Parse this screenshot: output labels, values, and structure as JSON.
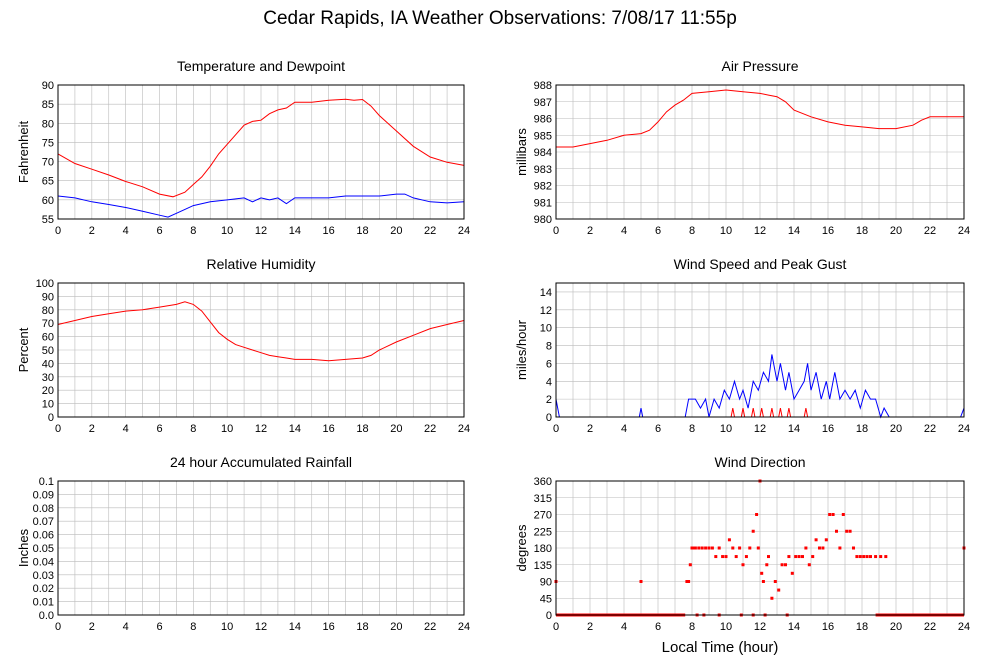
{
  "page": {
    "title": "Cedar Rapids, IA Weather Observations: 7/08/17 11:55p"
  },
  "x_axis_label": "Local Time (hour)",
  "colors": {
    "primary": "#ff0000",
    "secondary": "#0000ff",
    "grid": "#bbbbbb",
    "axis": "#000000"
  },
  "chart_data": [
    {
      "id": "temp",
      "type": "line",
      "title": "Temperature and Dewpoint",
      "ylabel": "Fahrenheit",
      "xlim": [
        0,
        24
      ],
      "ylim": [
        55,
        90
      ],
      "xticks": [
        0,
        2,
        4,
        6,
        8,
        10,
        12,
        14,
        16,
        18,
        20,
        22,
        24
      ],
      "yticks": [
        "55",
        "60",
        "65",
        "70",
        "75",
        "80",
        "85",
        "90"
      ],
      "grid": true,
      "series": [
        {
          "color": "#ff0000",
          "x": [
            0,
            1,
            2,
            3,
            4,
            5,
            6,
            6.8,
            7.5,
            8,
            8.5,
            9,
            9.5,
            10,
            10.5,
            11,
            11.5,
            12,
            12.5,
            13,
            13.5,
            14,
            15,
            16,
            17,
            17.5,
            18,
            18.5,
            19,
            20,
            21,
            22,
            23,
            24
          ],
          "y": [
            72,
            69.5,
            68,
            66.5,
            64.8,
            63.4,
            61.5,
            60.8,
            62,
            64,
            66,
            68.8,
            72,
            74.5,
            77,
            79.5,
            80.5,
            80.8,
            82.5,
            83.5,
            84,
            85.5,
            85.5,
            86,
            86.3,
            86,
            86.2,
            84.5,
            82,
            78,
            74,
            71.2,
            69.8,
            69
          ]
        },
        {
          "color": "#0000ff",
          "x": [
            0,
            1,
            2,
            3,
            4,
            5,
            6,
            6.5,
            7,
            7.5,
            8,
            9,
            10,
            11,
            11.5,
            12,
            12.5,
            13,
            13.5,
            14,
            15,
            16,
            17,
            18,
            19,
            20,
            20.5,
            21,
            22,
            23,
            24
          ],
          "y": [
            61,
            60.5,
            59.5,
            58.8,
            58,
            57,
            56,
            55.5,
            56.5,
            57.5,
            58.5,
            59.5,
            60,
            60.5,
            59.5,
            60.5,
            60,
            60.5,
            59,
            60.5,
            60.5,
            60.5,
            61,
            61,
            61,
            61.5,
            61.5,
            60.5,
            59.5,
            59.2,
            59.5
          ]
        }
      ]
    },
    {
      "id": "pressure",
      "type": "line",
      "title": "Air Pressure",
      "ylabel": "millibars",
      "xlim": [
        0,
        24
      ],
      "ylim": [
        980,
        988
      ],
      "xticks": [
        0,
        2,
        4,
        6,
        8,
        10,
        12,
        14,
        16,
        18,
        20,
        22,
        24
      ],
      "yticks": [
        "980",
        "981",
        "982",
        "983",
        "984",
        "985",
        "986",
        "987",
        "988"
      ],
      "grid": true,
      "series": [
        {
          "color": "#ff0000",
          "x": [
            0,
            1,
            2,
            3,
            4,
            5,
            5.5,
            6,
            6.5,
            7,
            7.5,
            8,
            9,
            10,
            11,
            12,
            12.5,
            13,
            13.5,
            14,
            15,
            16,
            17,
            18,
            19,
            20,
            21,
            21.5,
            22,
            23,
            24
          ],
          "y": [
            984.3,
            984.3,
            984.5,
            984.7,
            985,
            985.1,
            985.3,
            985.8,
            986.4,
            986.8,
            987.1,
            987.5,
            987.6,
            987.7,
            987.6,
            987.5,
            987.4,
            987.3,
            987.0,
            986.5,
            986.1,
            985.8,
            985.6,
            985.5,
            985.4,
            985.4,
            985.6,
            985.9,
            986.1,
            986.1,
            986.1
          ]
        }
      ]
    },
    {
      "id": "rh",
      "type": "line",
      "title": "Relative Humidity",
      "ylabel": "Percent",
      "xlim": [
        0,
        24
      ],
      "ylim": [
        0,
        100
      ],
      "xticks": [
        0,
        2,
        4,
        6,
        8,
        10,
        12,
        14,
        16,
        18,
        20,
        22,
        24
      ],
      "yticks": [
        "0",
        "10",
        "20",
        "30",
        "40",
        "50",
        "60",
        "70",
        "80",
        "90",
        "100"
      ],
      "grid": true,
      "series": [
        {
          "color": "#ff0000",
          "x": [
            0,
            1,
            2,
            3,
            4,
            5,
            6,
            7,
            7.5,
            8,
            8.5,
            9,
            9.5,
            10,
            10.5,
            11,
            11.5,
            12,
            12.5,
            13,
            13.5,
            14,
            15,
            16,
            17,
            18,
            18.5,
            19,
            20,
            21,
            22,
            23,
            24
          ],
          "y": [
            69,
            72,
            75,
            77,
            79,
            80,
            82,
            84,
            86,
            84,
            79,
            71,
            63,
            58,
            54,
            52,
            50,
            48,
            46,
            45,
            44,
            43,
            43,
            42,
            43,
            44,
            46,
            50,
            56,
            61,
            66,
            69,
            72
          ]
        }
      ]
    },
    {
      "id": "wind",
      "type": "line",
      "title": "Wind Speed and Peak Gust",
      "ylabel": "miles/hour",
      "xlim": [
        0,
        24
      ],
      "ylim": [
        0,
        15
      ],
      "xticks": [
        0,
        2,
        4,
        6,
        8,
        10,
        12,
        14,
        16,
        18,
        20,
        22,
        24
      ],
      "yticks": [
        "0",
        "2",
        "4",
        "6",
        "8",
        "10",
        "12",
        "14"
      ],
      "grid": true,
      "series": [
        {
          "color": "#0000ff",
          "x": [
            0,
            0.1,
            0.2,
            4.9,
            5,
            5.1,
            7.6,
            7.8,
            8.2,
            8.5,
            8.8,
            9,
            9.3,
            9.6,
            9.9,
            10.2,
            10.5,
            10.8,
            11,
            11.3,
            11.6,
            11.9,
            12.2,
            12.5,
            12.7,
            13,
            13.2,
            13.5,
            13.7,
            14,
            14.3,
            14.6,
            14.8,
            15,
            15.3,
            15.6,
            15.9,
            16.1,
            16.4,
            16.7,
            17,
            17.3,
            17.6,
            17.9,
            18.2,
            18.5,
            18.8,
            19.1,
            19.3,
            19.6,
            23.8,
            24
          ],
          "y": [
            2,
            1,
            0,
            0,
            1,
            0,
            0,
            2,
            2,
            1,
            2,
            0,
            2,
            1,
            3,
            2,
            4,
            2,
            3,
            1,
            4,
            3,
            5,
            4,
            7,
            4,
            6,
            3,
            5,
            2,
            3,
            4,
            6,
            3,
            5,
            2,
            4,
            2,
            5,
            2,
            3,
            2,
            3,
            1,
            3,
            2,
            2,
            0,
            1,
            0,
            0,
            1
          ]
        },
        {
          "color": "#ff0000",
          "x": [
            0,
            10.3,
            10.4,
            10.5,
            10.9,
            11,
            11.1,
            11.5,
            11.6,
            11.7,
            12,
            12.1,
            12.2,
            12.6,
            12.7,
            12.8,
            13.1,
            13.2,
            13.3,
            13.6,
            13.7,
            13.8,
            14.6,
            14.7,
            14.8,
            24
          ],
          "y": [
            0,
            0,
            1,
            0,
            0,
            1,
            0,
            0,
            1,
            0,
            0,
            1,
            0,
            0,
            1,
            0,
            0,
            1,
            0,
            0,
            1,
            0,
            0,
            1,
            0,
            0
          ]
        }
      ]
    },
    {
      "id": "rain",
      "type": "line",
      "title": "24 hour Accumulated Rainfall",
      "ylabel": "Inches",
      "xlim": [
        0,
        24
      ],
      "ylim": [
        0,
        0.1
      ],
      "xticks": [
        0,
        2,
        4,
        6,
        8,
        10,
        12,
        14,
        16,
        18,
        20,
        22,
        24
      ],
      "yticks": [
        "0.0",
        "0.01",
        "0.02",
        "0.03",
        "0.04",
        "0.05",
        "0.06",
        "0.07",
        "0.08",
        "0.09",
        "0.1"
      ],
      "grid": true,
      "series": [
        {
          "color": "#ff00ff",
          "x": [
            0,
            24
          ],
          "y": [
            0,
            0
          ]
        }
      ]
    },
    {
      "id": "winddir",
      "type": "scatter",
      "title": "Wind Direction",
      "ylabel": "degrees",
      "xlim": [
        0,
        24
      ],
      "ylim": [
        0,
        360
      ],
      "xticks": [
        0,
        2,
        4,
        6,
        8,
        10,
        12,
        14,
        16,
        18,
        20,
        22,
        24
      ],
      "yticks": [
        "0",
        "45",
        "90",
        "135",
        "180",
        "225",
        "270",
        "315",
        "360"
      ],
      "grid": true,
      "zero_band": [
        [
          0,
          7.6
        ],
        [
          18.8,
          24
        ]
      ],
      "series": [
        {
          "color": "#ff0000",
          "x": [
            0,
            5,
            7.7,
            7.8,
            7.9,
            8.0,
            8.1,
            8.2,
            8.4,
            8.6,
            8.8,
            9.0,
            9.2,
            9.4,
            9.6,
            9.8,
            10.0,
            10.2,
            10.4,
            10.6,
            10.8,
            11.0,
            11.2,
            11.4,
            11.6,
            11.8,
            11.9,
            12.0,
            12.1,
            12.2,
            12.4,
            12.5,
            12.7,
            12.9,
            13.1,
            13.3,
            13.5,
            13.7,
            13.9,
            14.1,
            14.3,
            14.5,
            14.7,
            14.9,
            15.1,
            15.3,
            15.5,
            15.7,
            15.9,
            16.1,
            16.3,
            16.5,
            16.7,
            16.9,
            17.1,
            17.3,
            17.5,
            17.7,
            17.9,
            18.1,
            18.3,
            18.5,
            18.8,
            19.1,
            19.4,
            8.3,
            8.7,
            9.6,
            10.9,
            11.6,
            12.3,
            13.6,
            24
          ],
          "y": [
            90,
            90,
            90,
            90,
            135,
            180,
            180,
            180,
            180,
            180,
            180,
            180,
            180,
            157,
            180,
            157,
            157,
            202,
            180,
            157,
            180,
            135,
            157,
            180,
            225,
            270,
            180,
            360,
            112,
            90,
            135,
            157,
            45,
            90,
            67,
            135,
            135,
            157,
            112,
            157,
            157,
            157,
            180,
            135,
            157,
            202,
            180,
            180,
            202,
            270,
            270,
            225,
            180,
            270,
            225,
            225,
            180,
            157,
            157,
            157,
            157,
            157,
            157,
            157,
            157,
            0,
            0,
            0,
            0,
            0,
            0,
            0,
            180
          ]
        }
      ]
    }
  ]
}
